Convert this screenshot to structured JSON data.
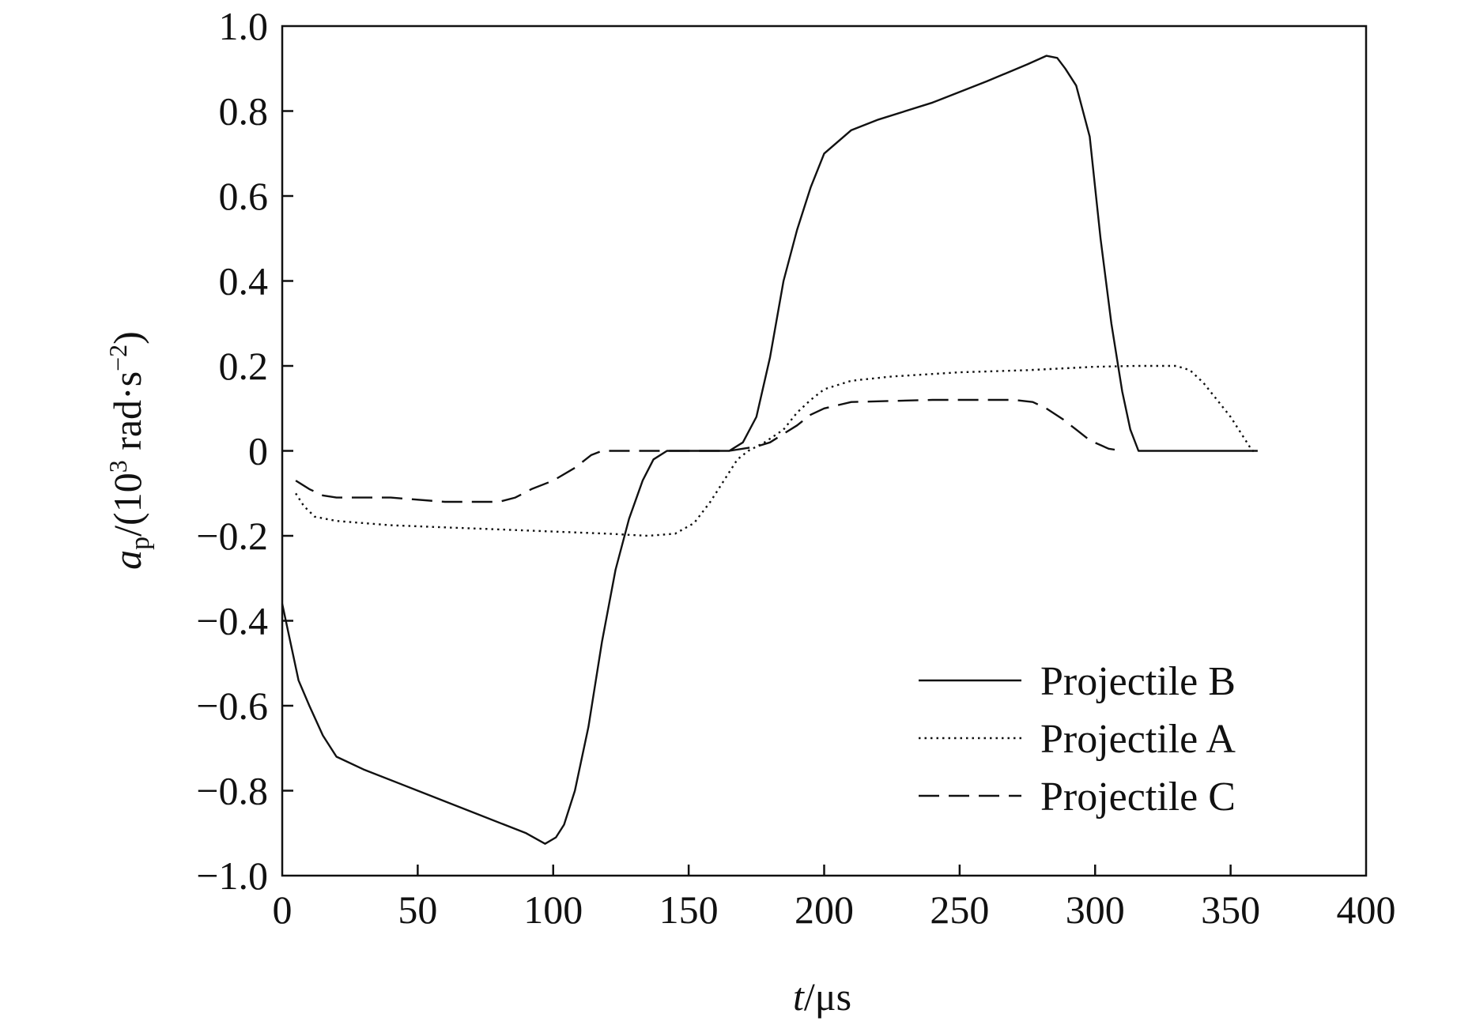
{
  "chart_data": {
    "type": "line",
    "xlabel_var": "t",
    "xlabel_unit": "/μs",
    "ylabel_var": "a",
    "ylabel_sub": "p",
    "ylabel_pre": "/(10",
    "ylabel_sup": "3",
    "ylabel_mid": " rad·s",
    "ylabel_sup2": "−2",
    "ylabel_post": ")",
    "xlim": [
      0,
      400
    ],
    "ylim": [
      -1.0,
      1.0
    ],
    "x_ticks": [
      0,
      50,
      100,
      150,
      200,
      250,
      300,
      350,
      400
    ],
    "x_tick_labels": [
      "0",
      "50",
      "100",
      "150",
      "200",
      "250",
      "300",
      "350",
      "400"
    ],
    "y_ticks": [
      1.0,
      0.8,
      0.6,
      0.4,
      0.2,
      0,
      -0.2,
      -0.4,
      -0.6,
      -0.8,
      -1.0
    ],
    "y_tick_labels": [
      "1.0",
      "0.8",
      "0.6",
      "0.4",
      "0.2",
      "0",
      "−0.2",
      "−0.4",
      "−0.6",
      "−0.8",
      "−1.0"
    ],
    "grid": false,
    "legend_position": "bottom-right",
    "series": [
      {
        "name": "Projectile B",
        "dash": "solid",
        "points": [
          [
            0,
            -0.36
          ],
          [
            3,
            -0.45
          ],
          [
            6,
            -0.54
          ],
          [
            10,
            -0.6
          ],
          [
            15,
            -0.67
          ],
          [
            20,
            -0.72
          ],
          [
            30,
            -0.75
          ],
          [
            50,
            -0.8
          ],
          [
            70,
            -0.85
          ],
          [
            90,
            -0.9
          ],
          [
            97,
            -0.925
          ],
          [
            101,
            -0.91
          ],
          [
            104,
            -0.88
          ],
          [
            108,
            -0.8
          ],
          [
            113,
            -0.65
          ],
          [
            118,
            -0.45
          ],
          [
            123,
            -0.28
          ],
          [
            128,
            -0.16
          ],
          [
            133,
            -0.07
          ],
          [
            137,
            -0.02
          ],
          [
            142,
            0
          ],
          [
            165,
            0
          ],
          [
            170,
            0.02
          ],
          [
            175,
            0.08
          ],
          [
            180,
            0.22
          ],
          [
            185,
            0.4
          ],
          [
            190,
            0.52
          ],
          [
            195,
            0.62
          ],
          [
            200,
            0.7
          ],
          [
            210,
            0.755
          ],
          [
            220,
            0.78
          ],
          [
            240,
            0.82
          ],
          [
            260,
            0.87
          ],
          [
            275,
            0.91
          ],
          [
            282,
            0.93
          ],
          [
            286,
            0.925
          ],
          [
            289,
            0.9
          ],
          [
            293,
            0.86
          ],
          [
            298,
            0.74
          ],
          [
            302,
            0.5
          ],
          [
            306,
            0.3
          ],
          [
            310,
            0.14
          ],
          [
            313,
            0.05
          ],
          [
            316,
            0
          ],
          [
            360,
            0
          ]
        ]
      },
      {
        "name": "Projectile A",
        "dash": "dotted",
        "points": [
          [
            5,
            -0.1
          ],
          [
            8,
            -0.13
          ],
          [
            12,
            -0.155
          ],
          [
            20,
            -0.165
          ],
          [
            40,
            -0.175
          ],
          [
            60,
            -0.18
          ],
          [
            80,
            -0.185
          ],
          [
            100,
            -0.19
          ],
          [
            120,
            -0.195
          ],
          [
            135,
            -0.2
          ],
          [
            145,
            -0.195
          ],
          [
            152,
            -0.17
          ],
          [
            158,
            -0.12
          ],
          [
            163,
            -0.07
          ],
          [
            168,
            -0.02
          ],
          [
            172,
            0
          ],
          [
            178,
            0.02
          ],
          [
            185,
            0.05
          ],
          [
            190,
            0.09
          ],
          [
            195,
            0.12
          ],
          [
            200,
            0.145
          ],
          [
            210,
            0.165
          ],
          [
            225,
            0.175
          ],
          [
            250,
            0.185
          ],
          [
            275,
            0.19
          ],
          [
            300,
            0.198
          ],
          [
            315,
            0.2
          ],
          [
            330,
            0.2
          ],
          [
            335,
            0.19
          ],
          [
            340,
            0.16
          ],
          [
            345,
            0.12
          ],
          [
            350,
            0.08
          ],
          [
            355,
            0.03
          ],
          [
            358,
            0
          ],
          [
            360,
            0
          ]
        ]
      },
      {
        "name": "Projectile C",
        "dash": "dashed",
        "points": [
          [
            5,
            -0.07
          ],
          [
            10,
            -0.09
          ],
          [
            15,
            -0.105
          ],
          [
            20,
            -0.11
          ],
          [
            40,
            -0.11
          ],
          [
            60,
            -0.12
          ],
          [
            80,
            -0.12
          ],
          [
            86,
            -0.11
          ],
          [
            92,
            -0.09
          ],
          [
            100,
            -0.07
          ],
          [
            108,
            -0.04
          ],
          [
            114,
            -0.01
          ],
          [
            118,
            0
          ],
          [
            165,
            0
          ],
          [
            175,
            0.01
          ],
          [
            180,
            0.02
          ],
          [
            185,
            0.04
          ],
          [
            190,
            0.06
          ],
          [
            195,
            0.085
          ],
          [
            200,
            0.1
          ],
          [
            210,
            0.115
          ],
          [
            240,
            0.12
          ],
          [
            270,
            0.12
          ],
          [
            277,
            0.115
          ],
          [
            282,
            0.1
          ],
          [
            288,
            0.075
          ],
          [
            293,
            0.05
          ],
          [
            298,
            0.025
          ],
          [
            305,
            0.005
          ],
          [
            310,
            0
          ]
        ]
      }
    ]
  }
}
